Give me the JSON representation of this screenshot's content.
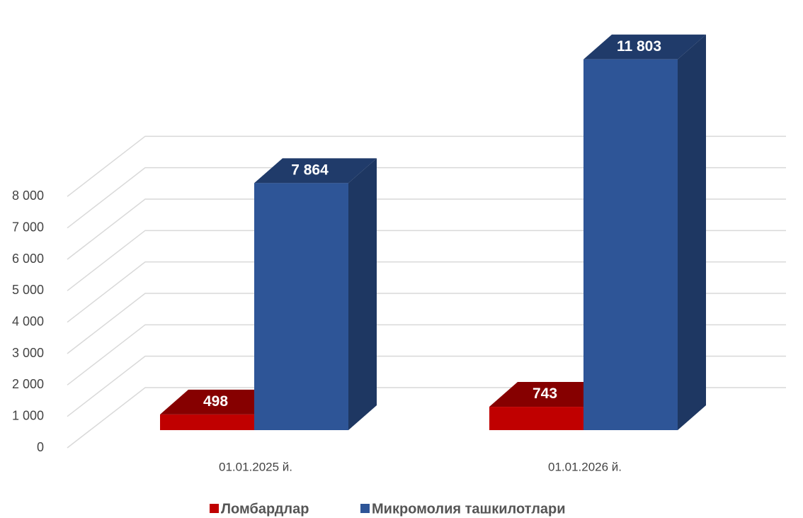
{
  "chart_data": {
    "type": "bar3d",
    "categories": [
      "01.01.2025 й.",
      "01.01.2026 й."
    ],
    "series": [
      {
        "name": "Ломбардлар",
        "color": "#c00000",
        "values": [
          498,
          743
        ],
        "value_labels": [
          "498",
          "743"
        ]
      },
      {
        "name": "Микромолия ташкилотлари",
        "color": "#2e5597",
        "values": [
          7864,
          11803
        ],
        "value_labels": [
          "7 864",
          "11 803"
        ]
      }
    ],
    "ylim": [
      0,
      12000
    ],
    "yticks": [
      {
        "value": 0,
        "label": "0"
      },
      {
        "value": 1000,
        "label": "1 000"
      },
      {
        "value": 2000,
        "label": "2 000"
      },
      {
        "value": 3000,
        "label": "3 000"
      },
      {
        "value": 4000,
        "label": "4 000"
      },
      {
        "value": 5000,
        "label": "5 000"
      },
      {
        "value": 6000,
        "label": "6 000"
      },
      {
        "value": 7000,
        "label": "7 000"
      },
      {
        "value": 8000,
        "label": "8 000"
      }
    ],
    "grid": true,
    "legend": "bottom"
  }
}
